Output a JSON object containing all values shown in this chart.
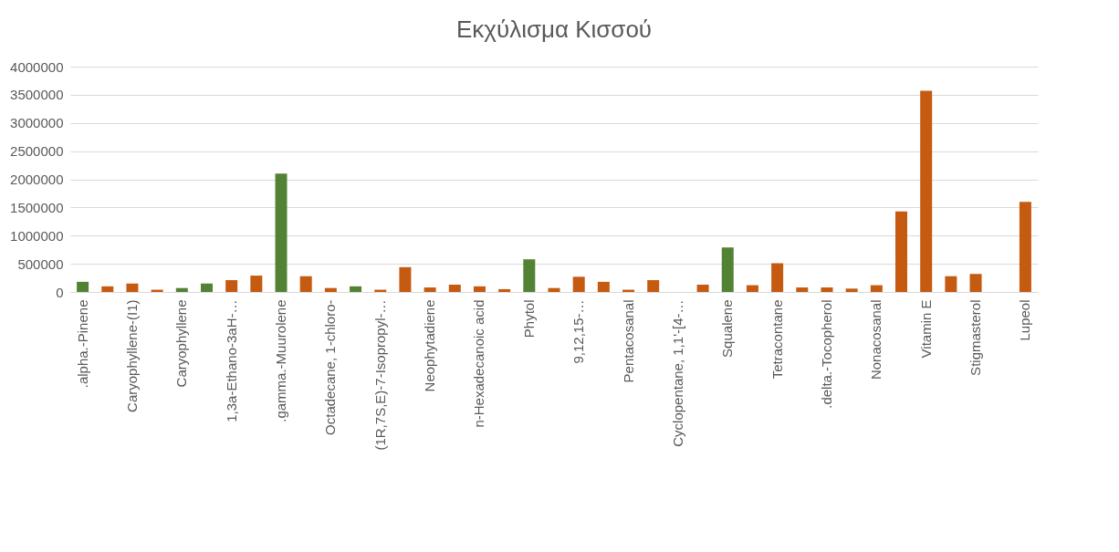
{
  "chart_data": {
    "type": "bar",
    "title": "Εκχύλισμα Κισσού",
    "categories": [
      ".alpha.-Pinene",
      null,
      "Caryophyllene-(I1)",
      null,
      "Caryophyllene",
      null,
      "1,3a-Ethano-3aH-…",
      null,
      ".gamma.-Muurolene",
      null,
      "Octadecane, 1-chloro-",
      null,
      "(1R,7S,E)-7-Isopropyl-…",
      null,
      "Neophytadiene",
      null,
      "n-Hexadecanoic acid",
      null,
      "Phytol",
      null,
      "9,12,15-…",
      null,
      "Pentacosanal",
      null,
      "Cyclopentane, 1,1'-[4-…",
      null,
      "Squalene",
      null,
      "Tetracontane",
      null,
      ".delta.-Tocopherol",
      null,
      "Nonacosanal",
      null,
      "Vitamin E",
      null,
      "Stigmasterol",
      null,
      "Lupeol"
    ],
    "values": [
      180000,
      100000,
      150000,
      40000,
      70000,
      150000,
      210000,
      290000,
      2100000,
      280000,
      70000,
      100000,
      40000,
      440000,
      80000,
      130000,
      100000,
      50000,
      580000,
      70000,
      270000,
      180000,
      40000,
      210000,
      null,
      130000,
      790000,
      120000,
      510000,
      80000,
      80000,
      60000,
      120000,
      1430000,
      3570000,
      280000,
      320000,
      null,
      1600000
    ],
    "colors": [
      "#548235",
      "#c55a11",
      "#c55a11",
      "#c55a11",
      "#548235",
      "#548235",
      "#c55a11",
      "#c55a11",
      "#548235",
      "#c55a11",
      "#c55a11",
      "#548235",
      "#c55a11",
      "#c55a11",
      "#c55a11",
      "#c55a11",
      "#c55a11",
      "#c55a11",
      "#548235",
      "#c55a11",
      "#c55a11",
      "#c55a11",
      "#c55a11",
      "#c55a11",
      "#c55a11",
      "#c55a11",
      "#548235",
      "#c55a11",
      "#c55a11",
      "#c55a11",
      "#c55a11",
      "#c55a11",
      "#c55a11",
      "#c55a11",
      "#c55a11",
      "#c55a11",
      "#c55a11",
      "#c55a11",
      "#c55a11"
    ],
    "ylim": [
      0,
      4000000
    ],
    "yticks": [
      0,
      500000,
      1000000,
      1500000,
      2000000,
      2500000,
      3000000,
      3500000,
      4000000
    ],
    "grid": "y"
  }
}
